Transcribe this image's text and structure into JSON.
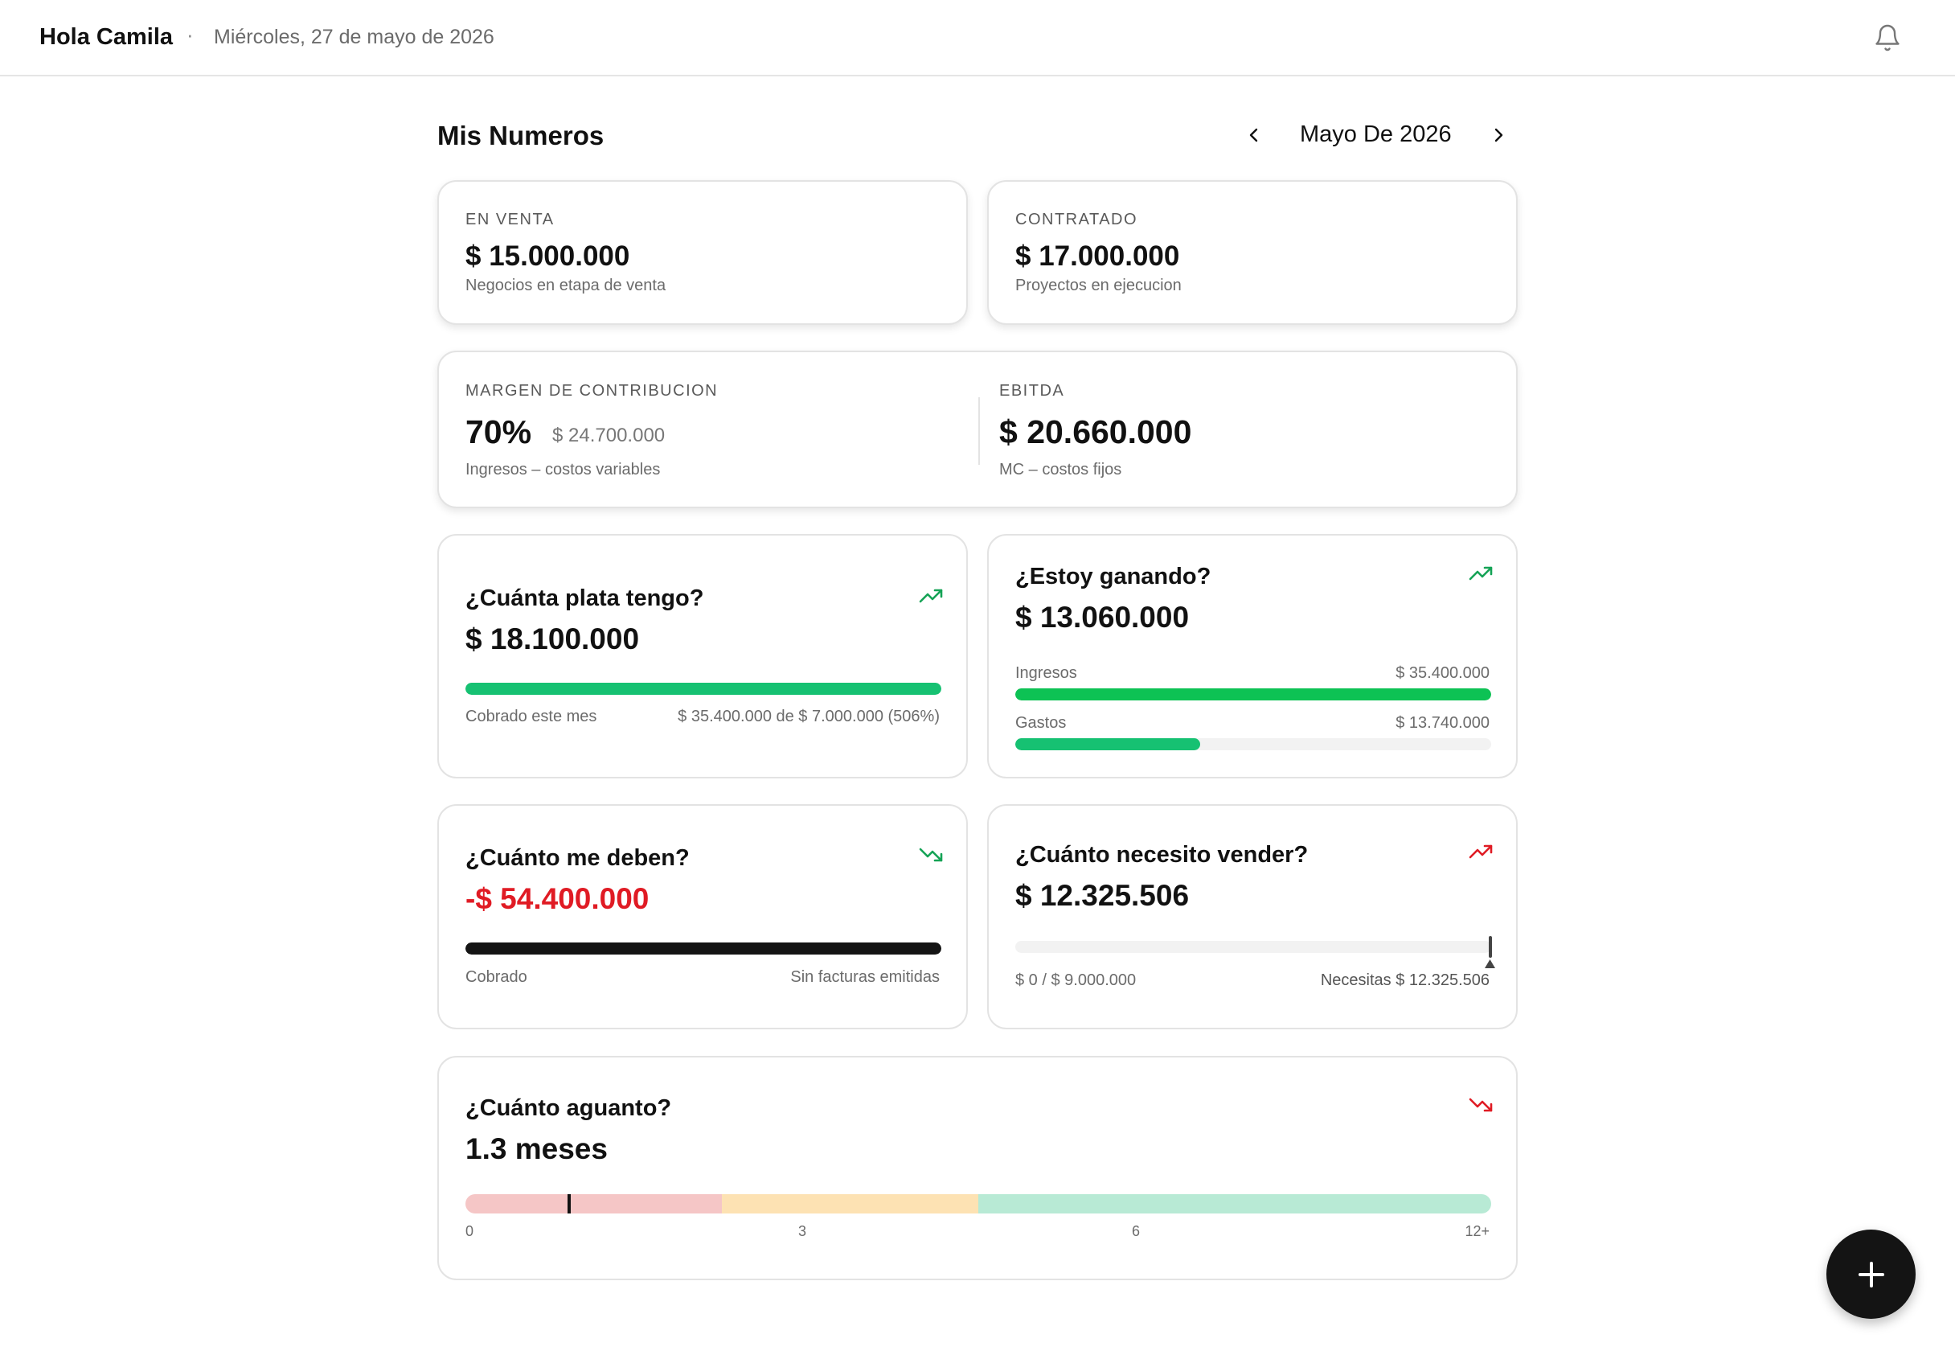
{
  "header": {
    "greeting": "Hola Camila",
    "separator": "·",
    "date": "Miércoles, 27 de mayo de 2026"
  },
  "section": {
    "title": "Mis Numeros",
    "month": "Mayo De 2026"
  },
  "en_venta": {
    "label": "EN VENTA",
    "value": "$ 15.000.000",
    "caption": "Negocios en etapa de venta"
  },
  "contratado": {
    "label": "CONTRATADO",
    "value": "$ 17.000.000",
    "caption": "Proyectos en ejecucion"
  },
  "margen": {
    "label": "MARGEN DE CONTRIBUCION",
    "percent": "70%",
    "amount": "$ 24.700.000",
    "caption": "Ingresos – costos variables"
  },
  "ebitda": {
    "label": "EBITDA",
    "value": "$ 20.660.000",
    "caption": "MC – costos fijos"
  },
  "plata": {
    "question": "¿Cuánta plata tengo?",
    "value": "$ 18.100.000",
    "left_caption": "Cobrado este mes",
    "right_caption": "$ 35.400.000 de $ 7.000.000 (506%)",
    "progress": 1.0
  },
  "ganando": {
    "question": "¿Estoy ganando?",
    "value": "$ 13.060.000",
    "ingresos_label": "Ingresos",
    "ingresos_value": "$ 35.400.000",
    "ingresos_progress": 1.0,
    "gastos_label": "Gastos",
    "gastos_value": "$ 13.740.000",
    "gastos_progress": 0.388
  },
  "deben": {
    "question": "¿Cuánto me deben?",
    "value": "-$ 54.400.000",
    "left_caption": "Cobrado",
    "right_caption": "Sin facturas emitidas",
    "progress": 1.0
  },
  "vender": {
    "question": "¿Cuánto necesito vender?",
    "value": "$ 12.325.506",
    "left_caption": "$ 0 / $ 9.000.000",
    "right_caption": "Necesitas $ 12.325.506",
    "progress": 0.0
  },
  "aguanto": {
    "question": "¿Cuánto aguanto?",
    "value": "1.3 meses",
    "months": 1.3,
    "ticks": [
      "0",
      "3",
      "6",
      "12+"
    ]
  },
  "colors": {
    "green": "#16c172",
    "bright_green": "#0dc254",
    "red": "#e01b24",
    "dark": "#141414"
  },
  "icons": {
    "bell": "bell-icon",
    "prev": "chevron-left-icon",
    "next": "chevron-right-icon",
    "trend_up_green": "trend-up-icon",
    "trend_down_green": "trend-down-icon",
    "trend_up_red": "trend-up-icon",
    "trend_down_red": "trend-down-icon",
    "add": "plus-icon"
  }
}
